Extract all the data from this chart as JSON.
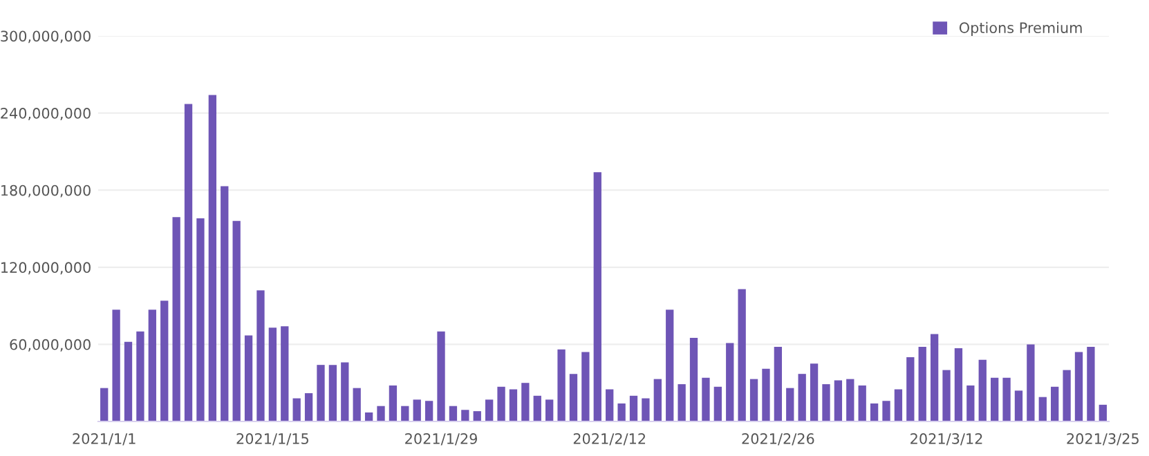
{
  "chart_data": {
    "type": "bar",
    "categories": [
      "2021/1/1",
      null,
      null,
      null,
      null,
      null,
      null,
      null,
      null,
      null,
      null,
      null,
      null,
      null,
      "2021/1/15",
      null,
      null,
      null,
      null,
      null,
      null,
      null,
      null,
      null,
      null,
      null,
      null,
      null,
      "2021/1/29",
      null,
      null,
      null,
      null,
      null,
      null,
      null,
      null,
      null,
      null,
      null,
      null,
      null,
      "2021/2/12",
      null,
      null,
      null,
      null,
      null,
      null,
      null,
      null,
      null,
      null,
      null,
      null,
      null,
      "2021/2/26",
      null,
      null,
      null,
      null,
      null,
      null,
      null,
      null,
      null,
      null,
      null,
      null,
      null,
      "2021/3/12",
      null,
      null,
      null,
      null,
      null,
      null,
      null,
      null,
      null,
      null,
      null,
      null,
      "2021/3/25"
    ],
    "series": [
      {
        "name": "Options Premium",
        "color": "#6e55b6",
        "values": [
          26000000,
          87000000,
          62000000,
          70000000,
          87000000,
          94000000,
          159000000,
          247000000,
          158000000,
          254000000,
          183000000,
          156000000,
          67000000,
          102000000,
          73000000,
          74000000,
          18000000,
          22000000,
          44000000,
          44000000,
          46000000,
          26000000,
          7000000,
          12000000,
          28000000,
          12000000,
          17000000,
          16000000,
          70000000,
          12000000,
          9000000,
          8000000,
          17000000,
          27000000,
          25000000,
          30000000,
          20000000,
          17000000,
          56000000,
          37000000,
          54000000,
          194000000,
          25000000,
          14000000,
          20000000,
          18000000,
          33000000,
          87000000,
          29000000,
          65000000,
          34000000,
          27000000,
          61000000,
          103000000,
          33000000,
          41000000,
          58000000,
          26000000,
          37000000,
          45000000,
          29000000,
          32000000,
          33000000,
          28000000,
          14000000,
          16000000,
          25000000,
          50000000,
          58000000,
          68000000,
          40000000,
          57000000,
          28000000,
          48000000,
          34000000,
          34000000,
          24000000,
          60000000,
          19000000,
          27000000,
          40000000,
          54000000,
          58000000,
          13000000
        ]
      }
    ],
    "ylim": [
      0,
      300000000
    ],
    "yticks": [
      {
        "value": 60000000,
        "label": "60,000,000"
      },
      {
        "value": 120000000,
        "label": "120,000,000"
      },
      {
        "value": 180000000,
        "label": "180,000,000"
      },
      {
        "value": 240000000,
        "label": "240,000,000"
      },
      {
        "value": 300000000,
        "label": "300,000,000"
      }
    ],
    "grid": "y",
    "legend": "top right"
  }
}
